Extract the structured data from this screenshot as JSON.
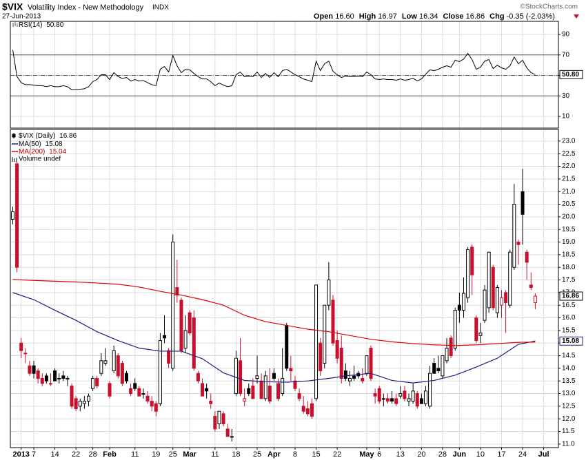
{
  "header": {
    "symbol": "$VIX",
    "name": "Volatility Index - New Methodology",
    "exchange": "INDX",
    "date": "27-Jun-2013",
    "credit": "©StockCharts.com",
    "quote": [
      {
        "label": "Open",
        "value": "16.60"
      },
      {
        "label": "High",
        "value": "16.97"
      },
      {
        "label": "Low",
        "value": "16.34"
      },
      {
        "label": "Close",
        "value": "16.86"
      },
      {
        "label": "Chg",
        "value": "-0.35 (-2.03%)"
      }
    ]
  },
  "chart_data": [
    {
      "type": "line",
      "label": "RSI(14)",
      "last_label": "50.80",
      "color": "#000000",
      "xlim": [
        -0.57,
        129.5
      ],
      "ylim": [
        -1.4,
        102.8
      ],
      "yticks": [
        90,
        70,
        50,
        30,
        10
      ],
      "reference_lines": [
        70,
        30
      ],
      "midline": 50,
      "grid": true,
      "values": [
        75,
        49,
        43,
        41,
        41,
        40.5,
        40,
        40,
        39,
        40,
        39,
        39,
        40,
        39,
        36,
        36,
        36.5,
        37,
        39,
        44,
        46,
        50.7,
        50.7,
        46,
        52.7,
        49,
        47,
        48,
        44.6,
        46,
        44.6,
        45,
        43,
        41,
        40,
        56,
        58.7,
        53.4,
        69.5,
        59.4,
        52.7,
        56,
        55.4,
        52,
        48.7,
        46.6,
        46.6,
        44,
        40,
        42.6,
        40.6,
        39,
        40,
        50.7,
        53.4,
        48.7,
        49.3,
        48.7,
        53.4,
        48,
        52,
        48,
        52.7,
        48.7,
        54.7,
        56,
        53.4,
        50.7,
        48.7,
        46.6,
        45.3,
        44,
        64,
        54.7,
        61.4,
        64,
        54,
        50.7,
        48,
        49.3,
        48.7,
        48.7,
        49.3,
        48.7,
        53.4,
        50.7,
        46.6,
        46,
        46.6,
        46,
        46,
        45.3,
        46.6,
        45.3,
        46,
        47.3,
        44.6,
        46.6,
        51.3,
        55.4,
        54.7,
        56,
        58,
        59.4,
        58,
        64.8,
        63.5,
        66,
        71.5,
        65.5,
        56,
        58,
        64,
        65.5,
        56.7,
        60,
        57.4,
        56,
        59.4,
        68,
        61.4,
        64.8,
        57.4,
        52.7,
        50.8
      ]
    },
    {
      "type": "candlestick",
      "xlim": [
        -0.57,
        129.5
      ],
      "ylim": [
        10.86,
        23.46
      ],
      "grid": true,
      "volume_label": "Volume undef",
      "xticks": [
        {
          "value": 2,
          "label": "2013"
        },
        {
          "value": 5,
          "label": "7"
        },
        {
          "value": 10,
          "label": "14"
        },
        {
          "value": 15,
          "label": "22"
        },
        {
          "value": 19,
          "label": "28"
        },
        {
          "value": 23,
          "label": "Feb"
        },
        {
          "value": 29,
          "label": "11"
        },
        {
          "value": 34,
          "label": "19"
        },
        {
          "value": 38,
          "label": "25"
        },
        {
          "value": 42,
          "label": "Mar"
        },
        {
          "value": 48,
          "label": "11"
        },
        {
          "value": 53,
          "label": "18"
        },
        {
          "value": 58,
          "label": "25"
        },
        {
          "value": 62,
          "label": "Apr"
        },
        {
          "value": 67,
          "label": "8"
        },
        {
          "value": 72,
          "label": "15"
        },
        {
          "value": 77,
          "label": "22"
        },
        {
          "value": 84,
          "label": "May"
        },
        {
          "value": 87,
          "label": "6"
        },
        {
          "value": 92,
          "label": "13"
        },
        {
          "value": 97,
          "label": "20"
        },
        {
          "value": 102,
          "label": "28"
        },
        {
          "value": 106,
          "label": "Jun"
        },
        {
          "value": 111,
          "label": "10"
        },
        {
          "value": 116,
          "label": "17"
        },
        {
          "value": 121,
          "label": "24"
        },
        {
          "value": 126,
          "label": "Jul"
        }
      ],
      "yticks": [
        {
          "value": 23,
          "label": "23.0"
        },
        22.5,
        {
          "value": 22,
          "label": "22.0"
        },
        21.5,
        {
          "value": 21,
          "label": "21.0"
        },
        20.5,
        {
          "value": 20,
          "label": "20.0"
        },
        19.5,
        {
          "value": 19,
          "label": "19.0"
        },
        18.5,
        {
          "value": 18,
          "label": "18.0"
        },
        17.5,
        {
          "value": 17,
          "label": "17.0"
        },
        16.5,
        {
          "value": 16,
          "label": "16.0"
        },
        15.5,
        {
          "value": 15,
          "label": "15.0"
        },
        14.5,
        {
          "value": 14,
          "label": "14.0"
        },
        13.5,
        {
          "value": 13,
          "label": "13.0"
        },
        12.5,
        {
          "value": 12,
          "label": "12.0"
        },
        11.5,
        {
          "value": 11,
          "label": "11.0"
        }
      ],
      "series": [
        {
          "name": "$VIX (Daily)",
          "last_label": "16.86",
          "value_box": true,
          "up_color": "#000000",
          "down_color": "#c8102e",
          "open": [
            19.9,
            22.1,
            15.0,
            14.6,
            14.1,
            14.1,
            13.9,
            13.6,
            13.7,
            13.4,
            13.9,
            13.6,
            13.7,
            13.6,
            13.3,
            12.8,
            12.5,
            12.6,
            12.7,
            13.2,
            13.6,
            13.8,
            14.2,
            13.4,
            13.9,
            14.5,
            14.2,
            13.8,
            13.2,
            13.4,
            13.2,
            13.0,
            12.9,
            12.7,
            12.6,
            12.6,
            15.3,
            14.7,
            14.0,
            17.2,
            16.7,
            14.8,
            16.2,
            16.0,
            13.8,
            13.4,
            13.2,
            12.7,
            12.1,
            11.8,
            12.2,
            11.6,
            11.3,
            13.0,
            14.3,
            12.7,
            13.2,
            13.3,
            13.6,
            13.5,
            12.8,
            13.3,
            13.8,
            13.4,
            13.0,
            15.7,
            14.0,
            13.5,
            13.0,
            12.5,
            12.4,
            12.6,
            12.8,
            15.0,
            14.2,
            16.5,
            16.7,
            15.1,
            14.8,
            13.9,
            13.5,
            13.7,
            13.8,
            13.6,
            13.8,
            14.8,
            13.0,
            13.2,
            12.8,
            12.8,
            12.8,
            12.8,
            12.9,
            13.1,
            12.7,
            12.7,
            13.0,
            12.8,
            12.6,
            12.5,
            14.2,
            14.0,
            13.7,
            14.3,
            15.2,
            14.8,
            16.5,
            16.3,
            16.8,
            18.8,
            16.0,
            15.3,
            15.9,
            16.4,
            18.0,
            16.2,
            16.5,
            17.0,
            16.5,
            18.0,
            19.0,
            21.0,
            18.6,
            17.3,
            16.6
          ],
          "high": [
            20.4,
            22.2,
            15.2,
            14.8,
            14.3,
            14.3,
            14.0,
            13.8,
            13.8,
            13.8,
            14.0,
            13.8,
            13.9,
            13.7,
            13.4,
            12.9,
            12.8,
            12.9,
            13.0,
            13.7,
            13.7,
            14.6,
            14.8,
            13.5,
            14.9,
            14.6,
            14.3,
            13.9,
            13.4,
            13.6,
            13.3,
            13.2,
            13.1,
            12.9,
            12.7,
            15.4,
            16.1,
            14.8,
            19.3,
            18.3,
            16.8,
            16.1,
            16.3,
            16.3,
            13.9,
            13.6,
            13.4,
            13.0,
            12.3,
            12.3,
            12.3,
            11.8,
            11.6,
            14.7,
            15.2,
            13.2,
            13.4,
            13.6,
            14.5,
            13.8,
            13.9,
            14.0,
            14.0,
            13.6,
            14.8,
            15.8,
            14.5,
            13.7,
            13.2,
            12.9,
            12.7,
            12.8,
            17.3,
            15.2,
            16.5,
            18.2,
            16.9,
            15.5,
            15.3,
            14.2,
            13.9,
            14.1,
            13.9,
            14.0,
            14.5,
            14.9,
            13.2,
            13.3,
            13.0,
            13.0,
            13.1,
            13.0,
            13.3,
            13.3,
            13.0,
            13.4,
            13.1,
            13.0,
            13.3,
            14.1,
            14.4,
            14.5,
            14.5,
            15.2,
            15.3,
            16.4,
            17.0,
            17.6,
            18.8,
            18.9,
            16.1,
            15.8,
            17.3,
            18.6,
            18.1,
            17.3,
            17.1,
            17.1,
            18.7,
            21.3,
            19.1,
            21.9,
            18.7,
            17.8,
            16.97
          ],
          "low": [
            19.7,
            17.8,
            14.4,
            14.2,
            13.7,
            13.6,
            13.4,
            13.3,
            13.4,
            13.3,
            13.5,
            13.4,
            13.5,
            13.3,
            12.4,
            12.3,
            12.3,
            12.4,
            12.5,
            13.1,
            13.2,
            13.7,
            14.1,
            12.8,
            13.8,
            13.6,
            13.3,
            13.4,
            12.9,
            13.1,
            12.9,
            12.8,
            12.6,
            12.3,
            12.1,
            12.5,
            15.0,
            14.0,
            13.9,
            16.6,
            14.6,
            14.6,
            15.3,
            13.9,
            13.4,
            12.9,
            12.8,
            12.4,
            11.5,
            11.6,
            11.7,
            11.3,
            11.1,
            12.9,
            12.9,
            12.5,
            12.9,
            12.8,
            13.4,
            12.8,
            12.7,
            12.6,
            13.5,
            12.7,
            12.9,
            13.9,
            13.5,
            13.1,
            12.7,
            12.2,
            12.1,
            12.0,
            12.7,
            13.7,
            14.0,
            16.3,
            14.9,
            14.2,
            13.4,
            13.5,
            13.3,
            13.5,
            13.6,
            13.4,
            13.7,
            13.5,
            12.6,
            12.6,
            12.5,
            12.6,
            12.6,
            12.5,
            12.8,
            12.7,
            12.5,
            12.6,
            12.4,
            12.6,
            12.5,
            12.4,
            13.8,
            13.8,
            13.6,
            14.2,
            14.4,
            14.7,
            15.8,
            16.0,
            16.6,
            16.9,
            15.0,
            15.0,
            15.8,
            16.2,
            16.3,
            16.0,
            16.0,
            15.4,
            16.4,
            17.9,
            18.1,
            18.9,
            17.5,
            17.1,
            16.34
          ],
          "close": [
            20.2,
            18.0,
            14.7,
            14.6,
            13.8,
            13.8,
            13.6,
            13.4,
            13.5,
            13.4,
            13.5,
            13.6,
            13.6,
            13.6,
            12.5,
            12.4,
            12.7,
            12.7,
            12.9,
            13.6,
            13.3,
            14.3,
            14.3,
            12.9,
            14.7,
            13.7,
            13.4,
            13.5,
            13.0,
            13.2,
            12.9,
            13.0,
            12.7,
            12.5,
            12.3,
            15.1,
            15.2,
            14.2,
            19.0,
            16.9,
            14.7,
            15.5,
            15.4,
            14.0,
            13.5,
            12.9,
            13.1,
            12.6,
            11.6,
            12.3,
            11.8,
            11.3,
            11.3,
            14.4,
            13.0,
            12.8,
            13.0,
            12.8,
            13.7,
            12.8,
            13.7,
            12.7,
            13.6,
            12.8,
            13.6,
            14.0,
            13.9,
            13.2,
            12.8,
            12.3,
            12.2,
            12.1,
            17.3,
            13.9,
            16.5,
            17.5,
            15.0,
            14.4,
            13.6,
            13.6,
            13.6,
            13.6,
            13.7,
            13.5,
            14.5,
            13.6,
            12.9,
            12.7,
            12.8,
            12.7,
            12.7,
            12.6,
            13.0,
            12.8,
            12.8,
            13.1,
            12.5,
            12.6,
            13.1,
            13.8,
            13.8,
            13.9,
            14.5,
            14.8,
            14.5,
            16.3,
            16.3,
            16.97,
            18.7,
            17.7,
            15.1,
            15.4,
            17.1,
            18.6,
            16.4,
            17.2,
            16.8,
            16.6,
            18.6,
            20.5,
            18.9,
            20.1,
            18.2,
            17.2,
            16.86
          ]
        },
        {
          "name": "MA(50)",
          "last_label": "15.08",
          "value_box": true,
          "color": "#1c1c7a",
          "x": [
            0,
            5,
            10,
            15,
            20,
            25,
            30,
            35,
            40,
            45,
            50,
            55,
            60,
            65,
            70,
            75,
            80,
            85,
            90,
            95,
            100,
            105,
            110,
            115,
            120,
            124
          ],
          "values": [
            17.0,
            16.72,
            16.3,
            15.9,
            15.45,
            15.1,
            14.8,
            14.68,
            14.68,
            14.38,
            13.82,
            13.52,
            13.47,
            13.45,
            13.5,
            13.6,
            13.72,
            13.8,
            13.52,
            13.42,
            13.52,
            13.73,
            14.05,
            14.4,
            14.95,
            15.08
          ]
        },
        {
          "name": "MA(200)",
          "last_label": "15.04",
          "value_box": false,
          "color": "#e00000",
          "x": [
            0,
            5,
            10,
            15,
            20,
            25,
            30,
            35,
            40,
            45,
            50,
            55,
            60,
            65,
            70,
            75,
            80,
            85,
            90,
            95,
            100,
            105,
            110,
            115,
            120,
            124
          ],
          "values": [
            17.52,
            17.48,
            17.45,
            17.42,
            17.38,
            17.33,
            17.22,
            17.05,
            16.9,
            16.72,
            16.5,
            16.1,
            15.85,
            15.7,
            15.55,
            15.45,
            15.3,
            15.15,
            15.05,
            14.98,
            14.93,
            14.9,
            14.93,
            14.98,
            15.03,
            15.04
          ]
        }
      ]
    }
  ]
}
